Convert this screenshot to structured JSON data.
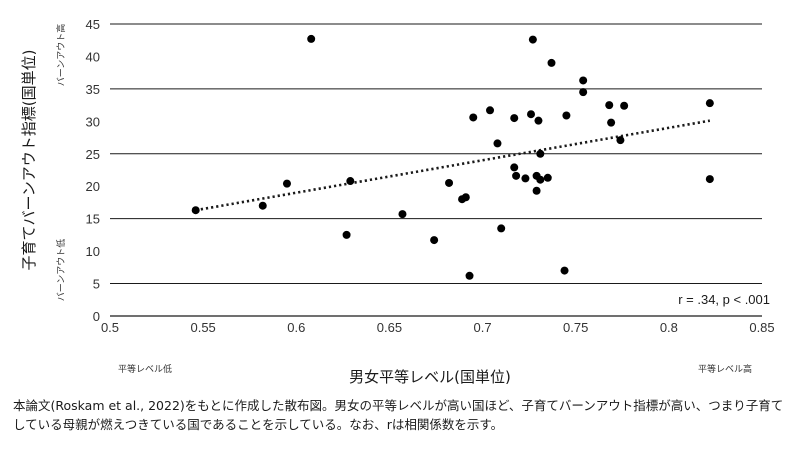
{
  "chart_data": {
    "type": "scatter",
    "xlabel": "男女平等レベル(国単位)",
    "ylabel": "子育てバーンアウト指標(国単位)",
    "x_low_label": "平等レベル低",
    "x_high_label": "平等レベル高",
    "y_low_label": "バーンアウト低",
    "y_high_label": "バーンアウト高",
    "xlim": [
      0.5,
      0.85
    ],
    "ylim": [
      0,
      45
    ],
    "xticks": [
      "0.5",
      "0.55",
      "0.6",
      "0.65",
      "0.7",
      "0.75",
      "0.8",
      "0.85"
    ],
    "yticks": [
      "0",
      "5",
      "10",
      "15",
      "20",
      "25",
      "30",
      "35",
      "40",
      "45"
    ],
    "grid": "horizontal",
    "stat_label": "r = .34, p < .001",
    "trendline": {
      "style": "dotted",
      "x": [
        0.546,
        0.822
      ],
      "y": [
        16.3,
        30.1
      ]
    },
    "points": [
      {
        "x": 0.546,
        "y": 16.3
      },
      {
        "x": 0.582,
        "y": 17.0
      },
      {
        "x": 0.595,
        "y": 20.4
      },
      {
        "x": 0.608,
        "y": 42.7
      },
      {
        "x": 0.627,
        "y": 12.5
      },
      {
        "x": 0.629,
        "y": 20.8
      },
      {
        "x": 0.657,
        "y": 15.7
      },
      {
        "x": 0.674,
        "y": 11.7
      },
      {
        "x": 0.682,
        "y": 20.5
      },
      {
        "x": 0.689,
        "y": 18.0
      },
      {
        "x": 0.691,
        "y": 18.3
      },
      {
        "x": 0.693,
        "y": 6.2
      },
      {
        "x": 0.695,
        "y": 30.6
      },
      {
        "x": 0.704,
        "y": 31.7
      },
      {
        "x": 0.708,
        "y": 26.6
      },
      {
        "x": 0.71,
        "y": 13.5
      },
      {
        "x": 0.717,
        "y": 30.5
      },
      {
        "x": 0.717,
        "y": 22.9
      },
      {
        "x": 0.718,
        "y": 21.6
      },
      {
        "x": 0.723,
        "y": 21.2
      },
      {
        "x": 0.726,
        "y": 31.1
      },
      {
        "x": 0.727,
        "y": 42.6
      },
      {
        "x": 0.729,
        "y": 19.3
      },
      {
        "x": 0.729,
        "y": 21.6
      },
      {
        "x": 0.73,
        "y": 30.1
      },
      {
        "x": 0.731,
        "y": 21.0
      },
      {
        "x": 0.731,
        "y": 25.0
      },
      {
        "x": 0.735,
        "y": 21.3
      },
      {
        "x": 0.737,
        "y": 39.0
      },
      {
        "x": 0.744,
        "y": 7.0
      },
      {
        "x": 0.745,
        "y": 30.9
      },
      {
        "x": 0.754,
        "y": 36.3
      },
      {
        "x": 0.754,
        "y": 34.5
      },
      {
        "x": 0.768,
        "y": 32.5
      },
      {
        "x": 0.769,
        "y": 29.8
      },
      {
        "x": 0.774,
        "y": 27.1
      },
      {
        "x": 0.776,
        "y": 32.4
      },
      {
        "x": 0.822,
        "y": 32.8
      },
      {
        "x": 0.822,
        "y": 21.1
      }
    ]
  },
  "caption": "本論文(Roskam et al., 2022)をもとに作成した散布図。男女の平等レベルが高い国ほど、子育てバーンアウト指標が高い、つまり子育てしている母親が燃えつきている国であることを示している。なお、rは相関係数を示す。"
}
